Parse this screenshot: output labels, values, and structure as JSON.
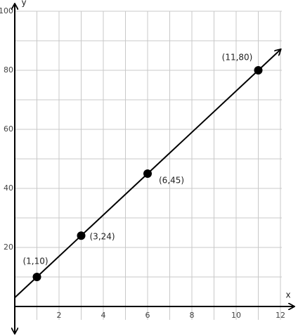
{
  "chart_data": {
    "type": "line",
    "x_label": "x",
    "y_label": "y",
    "series": [
      {
        "x": [
          1,
          3,
          6,
          11
        ],
        "values": [
          10,
          24,
          45,
          80
        ],
        "color": "#000000",
        "value_labels": [
          "(1,10)",
          "(3,24)",
          "(6,45)",
          "(11,80)"
        ]
      }
    ],
    "xlim": [
      0,
      12
    ],
    "ylim": [
      0,
      100
    ],
    "xticks": [
      2,
      4,
      6,
      8,
      10,
      12
    ],
    "yticks": [
      20,
      40,
      60,
      80,
      100
    ],
    "grid": true,
    "grid_step": {
      "x": 1,
      "y": 10
    }
  }
}
